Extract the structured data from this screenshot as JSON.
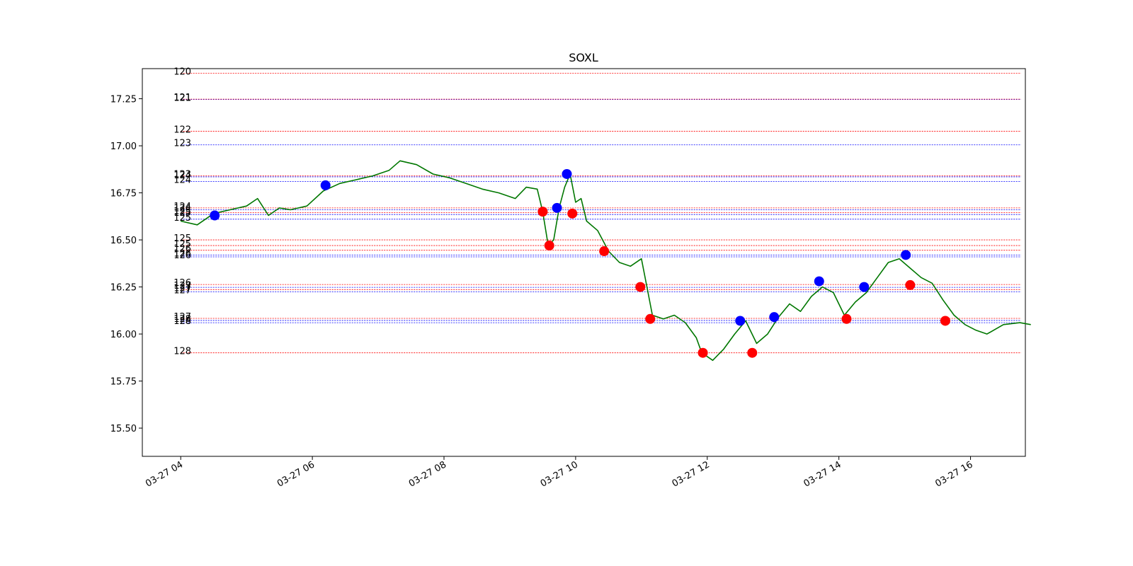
{
  "chart_data": {
    "type": "line",
    "title": "SOXL",
    "xlabel": "",
    "ylabel": "",
    "ylim": [
      15.35,
      17.41
    ],
    "xlim": [
      "2024-03-27 03:25",
      "2024-03-27 16:50"
    ],
    "x_ticks": [
      "2024-03-27 04:00",
      "2024-03-27 06:00",
      "2024-03-27 08:00",
      "2024-03-27 10:00",
      "2024-03-27 12:00",
      "2024-03-27 14:00",
      "2024-03-27 16:00"
    ],
    "x_tick_labels": [
      "03-27 04",
      "03-27 06",
      "03-27 08",
      "03-27 10",
      "03-27 12",
      "03-27 14",
      "03-27 16"
    ],
    "y_ticks": [
      15.5,
      15.75,
      16.0,
      16.25,
      16.5,
      16.75,
      17.0,
      17.25
    ],
    "y_tick_labels": [
      "15.50",
      "15.75",
      "16.00",
      "16.25",
      "16.50",
      "16.75",
      "17.00",
      "17.25"
    ],
    "grid": false,
    "colors": {
      "price": "#007700",
      "buy": "#0000ff",
      "sell": "#ff0000"
    },
    "price_series": {
      "x": [
        "2024-03-27 04:00",
        "2024-03-27 04:15",
        "2024-03-27 04:30",
        "2024-03-27 04:45",
        "2024-03-27 05:00",
        "2024-03-27 05:10",
        "2024-03-27 05:20",
        "2024-03-27 05:30",
        "2024-03-27 05:40",
        "2024-03-27 05:55",
        "2024-03-27 06:10",
        "2024-03-27 06:25",
        "2024-03-27 06:40",
        "2024-03-27 06:55",
        "2024-03-27 07:10",
        "2024-03-27 07:20",
        "2024-03-27 07:35",
        "2024-03-27 07:50",
        "2024-03-27 08:05",
        "2024-03-27 08:20",
        "2024-03-27 08:35",
        "2024-03-27 08:50",
        "2024-03-27 09:05",
        "2024-03-27 09:15",
        "2024-03-27 09:25",
        "2024-03-27 09:30",
        "2024-03-27 09:35",
        "2024-03-27 09:40",
        "2024-03-27 09:45",
        "2024-03-27 09:50",
        "2024-03-27 09:55",
        "2024-03-27 10:00",
        "2024-03-27 10:05",
        "2024-03-27 10:10",
        "2024-03-27 10:20",
        "2024-03-27 10:30",
        "2024-03-27 10:40",
        "2024-03-27 10:50",
        "2024-03-27 11:00",
        "2024-03-27 11:05",
        "2024-03-27 11:10",
        "2024-03-27 11:20",
        "2024-03-27 11:30",
        "2024-03-27 11:40",
        "2024-03-27 11:50",
        "2024-03-27 11:55",
        "2024-03-27 12:05",
        "2024-03-27 12:15",
        "2024-03-27 12:25",
        "2024-03-27 12:35",
        "2024-03-27 12:45",
        "2024-03-27 12:55",
        "2024-03-27 13:05",
        "2024-03-27 13:15",
        "2024-03-27 13:25",
        "2024-03-27 13:35",
        "2024-03-27 13:45",
        "2024-03-27 13:55",
        "2024-03-27 14:05",
        "2024-03-27 14:15",
        "2024-03-27 14:25",
        "2024-03-27 14:35",
        "2024-03-27 14:45",
        "2024-03-27 14:55",
        "2024-03-27 15:05",
        "2024-03-27 15:15",
        "2024-03-27 15:25",
        "2024-03-27 15:35",
        "2024-03-27 15:45",
        "2024-03-27 15:55",
        "2024-03-27 16:05",
        "2024-03-27 16:15",
        "2024-03-27 16:30",
        "2024-03-27 16:45",
        "2024-03-27 16:55"
      ],
      "y": [
        16.6,
        16.58,
        16.64,
        16.66,
        16.68,
        16.72,
        16.63,
        16.67,
        16.66,
        16.68,
        16.76,
        16.8,
        16.82,
        16.84,
        16.87,
        16.92,
        16.9,
        16.85,
        16.83,
        16.8,
        16.77,
        16.75,
        16.72,
        16.78,
        16.77,
        16.65,
        16.47,
        16.5,
        16.67,
        16.78,
        16.85,
        16.7,
        16.72,
        16.6,
        16.55,
        16.44,
        16.38,
        16.36,
        16.4,
        16.25,
        16.1,
        16.08,
        16.1,
        16.06,
        15.98,
        15.9,
        15.86,
        15.92,
        16.0,
        16.07,
        15.95,
        16.0,
        16.09,
        16.16,
        16.12,
        16.2,
        16.25,
        16.22,
        16.1,
        16.17,
        16.22,
        16.3,
        16.38,
        16.4,
        16.35,
        16.3,
        16.27,
        16.18,
        16.1,
        16.05,
        16.02,
        16.0,
        16.05,
        16.06,
        16.05
      ]
    },
    "markers": {
      "buy": {
        "x": [
          "2024-03-27 04:31",
          "2024-03-27 06:12",
          "2024-03-27 09:43",
          "2024-03-27 09:52",
          "2024-03-27 12:30",
          "2024-03-27 13:01",
          "2024-03-27 13:42",
          "2024-03-27 14:23",
          "2024-03-27 15:01"
        ],
        "y": [
          16.63,
          16.79,
          16.67,
          16.85,
          16.07,
          16.09,
          16.28,
          16.25,
          16.42
        ]
      },
      "sell": {
        "x": [
          "2024-03-27 09:30",
          "2024-03-27 09:36",
          "2024-03-27 09:57",
          "2024-03-27 10:26",
          "2024-03-27 10:59",
          "2024-03-27 11:08",
          "2024-03-27 11:56",
          "2024-03-27 12:41",
          "2024-03-27 14:07",
          "2024-03-27 15:05",
          "2024-03-27 15:37"
        ],
        "y": [
          16.65,
          16.47,
          16.64,
          16.44,
          16.25,
          16.08,
          15.9,
          15.9,
          16.08,
          16.26,
          16.07
        ]
      }
    },
    "levels": [
      {
        "label": "120",
        "y": 17.385,
        "color": "#ff0000"
      },
      {
        "label": "121",
        "y": 17.246,
        "color": "#0000ff"
      },
      {
        "label": "121",
        "y": 17.248,
        "color": "#ff0000"
      },
      {
        "label": "122",
        "y": 17.077,
        "color": "#ff0000"
      },
      {
        "label": "123",
        "y": 17.005,
        "color": "#0000ff"
      },
      {
        "label": "123",
        "y": 16.84,
        "color": "#ff0000"
      },
      {
        "label": "124",
        "y": 16.835,
        "color": "#0000ff"
      },
      {
        "label": "124",
        "y": 16.81,
        "color": "#0000ff"
      },
      {
        "label": "124",
        "y": 16.67,
        "color": "#ff0000"
      },
      {
        "label": "124",
        "y": 16.66,
        "color": "#0000ff"
      },
      {
        "label": "125",
        "y": 16.645,
        "color": "#ff0000"
      },
      {
        "label": "125",
        "y": 16.635,
        "color": "#0000ff"
      },
      {
        "label": "125",
        "y": 16.61,
        "color": "#0000ff"
      },
      {
        "label": "125",
        "y": 16.5,
        "color": "#ff0000"
      },
      {
        "label": "125",
        "y": 16.47,
        "color": "#ff0000"
      },
      {
        "label": "126",
        "y": 16.445,
        "color": "#ff0000"
      },
      {
        "label": "126",
        "y": 16.42,
        "color": "#0000ff"
      },
      {
        "label": "126",
        "y": 16.41,
        "color": "#0000ff"
      },
      {
        "label": "126",
        "y": 16.263,
        "color": "#ff0000"
      },
      {
        "label": "127",
        "y": 16.248,
        "color": "#0000ff"
      },
      {
        "label": "127",
        "y": 16.236,
        "color": "#ff0000"
      },
      {
        "label": "127",
        "y": 16.224,
        "color": "#0000ff"
      },
      {
        "label": "127",
        "y": 16.083,
        "color": "#ff0000"
      },
      {
        "label": "128",
        "y": 16.072,
        "color": "#0000ff"
      },
      {
        "label": "128",
        "y": 16.06,
        "color": "#0000ff"
      },
      {
        "label": "128",
        "y": 15.9,
        "color": "#ff0000"
      }
    ]
  }
}
